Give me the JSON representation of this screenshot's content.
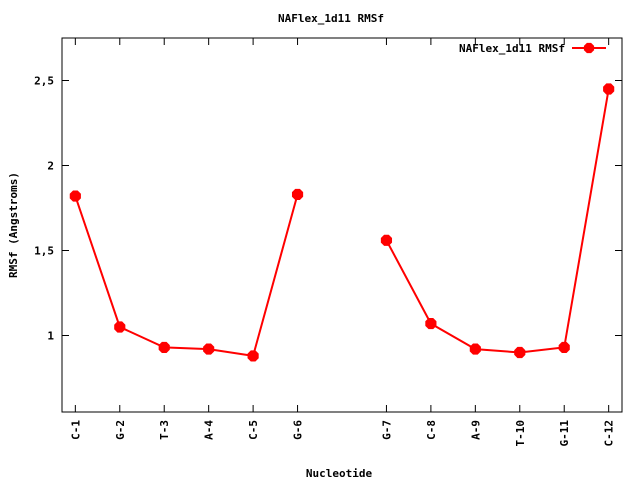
{
  "chart_data": {
    "type": "line",
    "title": "NAFlex_1d11 RMSf",
    "xlabel": "Nucleotide",
    "ylabel": "RMSf (Angstroms)",
    "ylim": [
      0.55,
      2.75
    ],
    "yticks": [
      1,
      1.5,
      2,
      2.5
    ],
    "ytick_labels": [
      "1",
      "1,5",
      "2",
      "2,5"
    ],
    "xlim": [
      0.7,
      13.3
    ],
    "grid": false,
    "legend_position": "top-right",
    "categories": [
      "C-1",
      "G-2",
      "T-3",
      "A-4",
      "C-5",
      "G-6",
      "G-7",
      "C-8",
      "A-9",
      "T-10",
      "G-11",
      "C-12"
    ],
    "x": [
      1,
      2,
      3,
      4,
      5,
      6,
      8,
      9,
      10,
      11,
      12,
      13
    ],
    "series": [
      {
        "name": "NAFlex_1d11 RMSf",
        "color": "#ff0000",
        "segments": [
          [
            0,
            1,
            2,
            3,
            4,
            5
          ],
          [
            6,
            7,
            8,
            9,
            10,
            11
          ]
        ],
        "values": [
          1.82,
          1.05,
          0.93,
          0.92,
          0.88,
          1.83,
          1.56,
          1.07,
          0.92,
          0.9,
          0.93,
          2.45
        ]
      }
    ]
  }
}
